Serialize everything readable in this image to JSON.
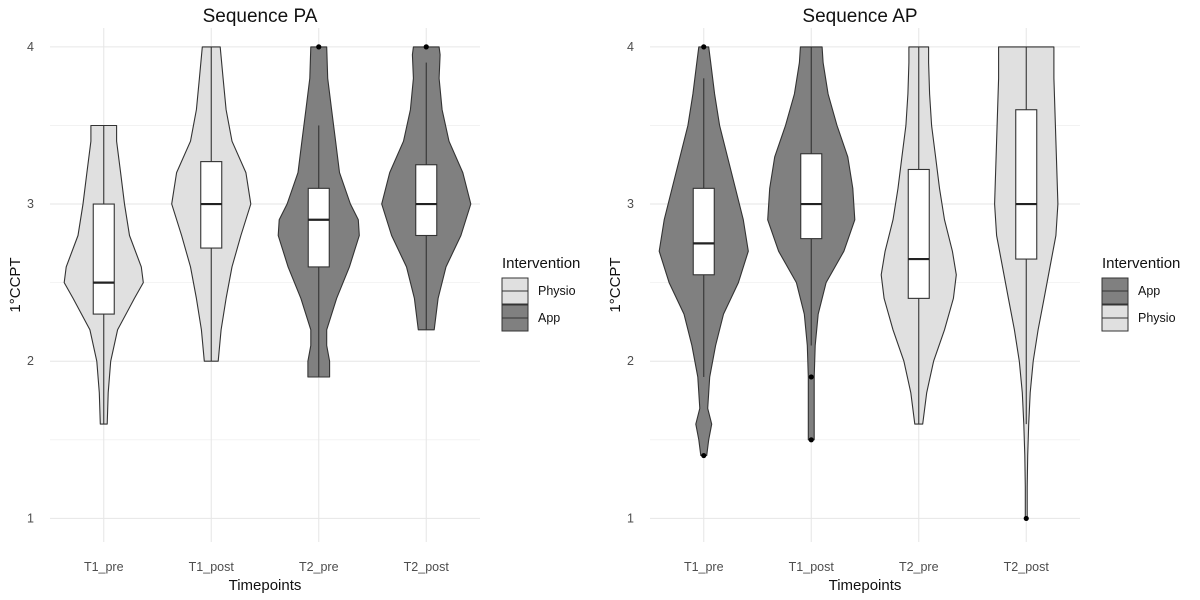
{
  "chart_data": [
    {
      "type": "violin",
      "title": "Sequence PA",
      "xlabel": "Timepoints",
      "ylabel": "1°CCPT",
      "categories": [
        "T1_pre",
        "T1_post",
        "T2_pre",
        "T2_post"
      ],
      "ylim": [
        0.85,
        4.12
      ],
      "yticks": [
        "1",
        "2",
        "3",
        "4"
      ],
      "grid": true,
      "legend": {
        "title": "Intervention",
        "placement": "right",
        "entries": [
          {
            "label": "Physio",
            "color": "#e0e0e0"
          },
          {
            "label": "App",
            "color": "#808080"
          }
        ]
      },
      "groups": [
        {
          "category": "T1_pre",
          "intervention": "Physio",
          "color": "#e0e0e0",
          "violin": [
            [
              1.6,
              0.07
            ],
            [
              1.8,
              0.09
            ],
            [
              2.0,
              0.14
            ],
            [
              2.2,
              0.28
            ],
            [
              2.4,
              0.62
            ],
            [
              2.5,
              0.8
            ],
            [
              2.6,
              0.76
            ],
            [
              2.8,
              0.52
            ],
            [
              3.0,
              0.42
            ],
            [
              3.2,
              0.34
            ],
            [
              3.4,
              0.26
            ],
            [
              3.5,
              0.26
            ]
          ],
          "box": {
            "q1": 2.3,
            "median": 2.5,
            "q3": 3.0,
            "lower_whisker": 1.6,
            "upper_whisker": 3.5
          },
          "outliers": []
        },
        {
          "category": "T1_post",
          "intervention": "Physio",
          "color": "#e0e0e0",
          "violin": [
            [
              2.0,
              0.14
            ],
            [
              2.2,
              0.2
            ],
            [
              2.4,
              0.3
            ],
            [
              2.6,
              0.42
            ],
            [
              2.8,
              0.6
            ],
            [
              3.0,
              0.8
            ],
            [
              3.2,
              0.7
            ],
            [
              3.4,
              0.42
            ],
            [
              3.6,
              0.3
            ],
            [
              3.8,
              0.24
            ],
            [
              4.0,
              0.18
            ]
          ],
          "box": {
            "q1": 2.72,
            "median": 3.0,
            "q3": 3.27,
            "lower_whisker": 2.0,
            "upper_whisker": 4.0
          },
          "outliers": []
        },
        {
          "category": "T2_pre",
          "intervention": "App",
          "color": "#808080",
          "violin": [
            [
              1.9,
              0.22
            ],
            [
              2.0,
              0.22
            ],
            [
              2.1,
              0.16
            ],
            [
              2.2,
              0.16
            ],
            [
              2.4,
              0.36
            ],
            [
              2.6,
              0.62
            ],
            [
              2.8,
              0.82
            ],
            [
              2.9,
              0.8
            ],
            [
              3.0,
              0.64
            ],
            [
              3.2,
              0.42
            ],
            [
              3.4,
              0.34
            ],
            [
              3.6,
              0.26
            ],
            [
              3.8,
              0.18
            ],
            [
              4.0,
              0.16
            ]
          ],
          "box": {
            "q1": 2.6,
            "median": 2.9,
            "q3": 3.1,
            "lower_whisker": 1.9,
            "upper_whisker": 3.5
          },
          "outliers": [
            4.0
          ]
        },
        {
          "category": "T2_post",
          "intervention": "App",
          "color": "#808080",
          "violin": [
            [
              2.2,
              0.16
            ],
            [
              2.4,
              0.24
            ],
            [
              2.6,
              0.4
            ],
            [
              2.8,
              0.7
            ],
            [
              3.0,
              0.9
            ],
            [
              3.2,
              0.74
            ],
            [
              3.4,
              0.46
            ],
            [
              3.6,
              0.32
            ],
            [
              3.8,
              0.26
            ],
            [
              3.95,
              0.28
            ],
            [
              4.0,
              0.26
            ]
          ],
          "box": {
            "q1": 2.8,
            "median": 3.0,
            "q3": 3.25,
            "lower_whisker": 2.2,
            "upper_whisker": 3.9
          },
          "outliers": [
            4.0
          ]
        }
      ]
    },
    {
      "type": "violin",
      "title": "Sequence AP",
      "xlabel": "Timepoints",
      "ylabel": "1°CCPT",
      "categories": [
        "T1_pre",
        "T1_post",
        "T2_pre",
        "T2_post"
      ],
      "ylim": [
        0.85,
        4.12
      ],
      "yticks": [
        "1",
        "2",
        "3",
        "4"
      ],
      "grid": true,
      "legend": {
        "title": "Intervention",
        "placement": "right",
        "entries": [
          {
            "label": "App",
            "color": "#808080"
          },
          {
            "label": "Physio",
            "color": "#e0e0e0"
          }
        ]
      },
      "groups": [
        {
          "category": "T1_pre",
          "intervention": "App",
          "color": "#808080",
          "violin": [
            [
              1.4,
              0.06
            ],
            [
              1.5,
              0.1
            ],
            [
              1.6,
              0.16
            ],
            [
              1.7,
              0.08
            ],
            [
              1.9,
              0.12
            ],
            [
              2.1,
              0.24
            ],
            [
              2.3,
              0.4
            ],
            [
              2.5,
              0.7
            ],
            [
              2.7,
              0.9
            ],
            [
              2.9,
              0.8
            ],
            [
              3.1,
              0.64
            ],
            [
              3.3,
              0.48
            ],
            [
              3.5,
              0.32
            ],
            [
              3.7,
              0.22
            ],
            [
              3.9,
              0.14
            ],
            [
              4.0,
              0.1
            ]
          ],
          "box": {
            "q1": 2.55,
            "median": 2.75,
            "q3": 3.1,
            "lower_whisker": 1.9,
            "upper_whisker": 3.8
          },
          "outliers": [
            1.4,
            4.0
          ]
        },
        {
          "category": "T1_post",
          "intervention": "App",
          "color": "#808080",
          "violin": [
            [
              1.5,
              0.06
            ],
            [
              1.7,
              0.06
            ],
            [
              1.9,
              0.06
            ],
            [
              2.1,
              0.08
            ],
            [
              2.3,
              0.14
            ],
            [
              2.5,
              0.3
            ],
            [
              2.7,
              0.66
            ],
            [
              2.9,
              0.88
            ],
            [
              3.1,
              0.84
            ],
            [
              3.3,
              0.74
            ],
            [
              3.5,
              0.52
            ],
            [
              3.7,
              0.34
            ],
            [
              3.9,
              0.24
            ],
            [
              4.0,
              0.22
            ]
          ],
          "box": {
            "q1": 2.78,
            "median": 3.0,
            "q3": 3.32,
            "lower_whisker": 2.1,
            "upper_whisker": 4.0
          },
          "outliers": [
            1.9,
            1.5
          ]
        },
        {
          "category": "T2_pre",
          "intervention": "Physio",
          "color": "#e0e0e0",
          "violin": [
            [
              1.6,
              0.08
            ],
            [
              1.8,
              0.16
            ],
            [
              2.0,
              0.3
            ],
            [
              2.2,
              0.52
            ],
            [
              2.4,
              0.7
            ],
            [
              2.55,
              0.76
            ],
            [
              2.7,
              0.68
            ],
            [
              2.9,
              0.52
            ],
            [
              3.1,
              0.42
            ],
            [
              3.3,
              0.34
            ],
            [
              3.5,
              0.26
            ],
            [
              3.7,
              0.22
            ],
            [
              3.9,
              0.2
            ],
            [
              4.0,
              0.2
            ]
          ],
          "box": {
            "q1": 2.4,
            "median": 2.65,
            "q3": 3.22,
            "lower_whisker": 1.6,
            "upper_whisker": 4.0
          },
          "outliers": []
        },
        {
          "category": "T2_post",
          "intervention": "Physio",
          "color": "#e0e0e0",
          "violin": [
            [
              1.0,
              0.02
            ],
            [
              1.2,
              0.02
            ],
            [
              1.4,
              0.03
            ],
            [
              1.6,
              0.05
            ],
            [
              1.8,
              0.08
            ],
            [
              2.0,
              0.14
            ],
            [
              2.2,
              0.24
            ],
            [
              2.4,
              0.36
            ],
            [
              2.6,
              0.48
            ],
            [
              2.8,
              0.6
            ],
            [
              3.0,
              0.64
            ],
            [
              3.2,
              0.62
            ],
            [
              3.4,
              0.6
            ],
            [
              3.6,
              0.58
            ],
            [
              3.8,
              0.56
            ],
            [
              4.0,
              0.56
            ]
          ],
          "box": {
            "q1": 2.65,
            "median": 3.0,
            "q3": 3.6,
            "lower_whisker": 1.6,
            "upper_whisker": 4.0
          },
          "outliers": [
            1.0
          ]
        }
      ]
    }
  ]
}
